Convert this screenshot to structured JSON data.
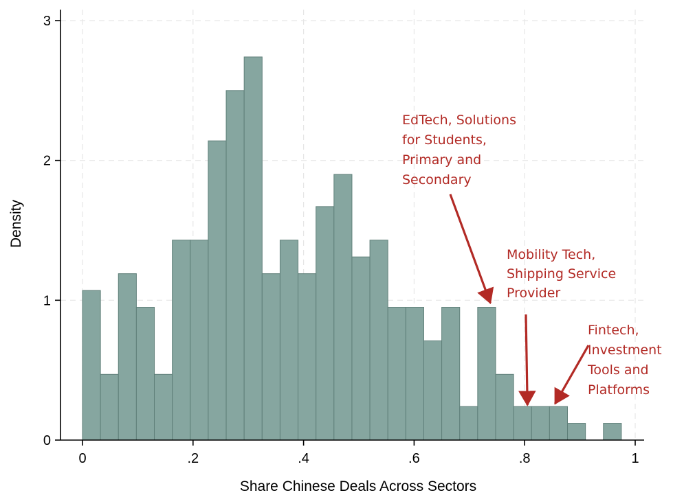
{
  "chart_data": {
    "type": "bar",
    "histogram": true,
    "bin_width": 0.0325,
    "bin_start": 0,
    "values": [
      1.07,
      0.47,
      1.19,
      0.95,
      0.47,
      1.43,
      1.43,
      2.14,
      2.5,
      2.74,
      1.19,
      1.43,
      1.19,
      1.67,
      1.9,
      1.31,
      1.43,
      0.95,
      0.95,
      0.71,
      0.95,
      0.24,
      0.95,
      0.47,
      0.24,
      0.24,
      0.24,
      0.12,
      0,
      0.12
    ],
    "xlabel": "Share Chinese Deals Across Sectors",
    "ylabel": "Density",
    "xlim": [
      0,
      1
    ],
    "ylim": [
      0,
      3
    ],
    "xticks": [
      {
        "value": 0,
        "label": "0"
      },
      {
        "value": 0.2,
        "label": ".2"
      },
      {
        "value": 0.4,
        "label": ".4"
      },
      {
        "value": 0.6,
        "label": ".6"
      },
      {
        "value": 0.8,
        "label": ".8"
      },
      {
        "value": 1,
        "label": "1"
      }
    ],
    "yticks": [
      {
        "value": 0,
        "label": "0"
      },
      {
        "value": 1,
        "label": "1"
      },
      {
        "value": 2,
        "label": "2"
      },
      {
        "value": 3,
        "label": "3"
      }
    ],
    "grid": true,
    "bar_color": "#86a6a0",
    "bar_edge_color": "#5f7f79",
    "annotation_color": "#b22a25",
    "annotations": [
      {
        "lines": [
          "EdTech, Solutions",
          "for Students,",
          "Primary and",
          "Secondary"
        ],
        "arrow_to": {
          "x": 0.738,
          "y": 0.97
        }
      },
      {
        "lines": [
          "Mobility Tech,",
          "Shipping Service",
          "Provider"
        ],
        "arrow_to": {
          "x": 0.805,
          "y": 0.24
        }
      },
      {
        "lines": [
          "Fintech,",
          "Investment",
          "Tools and",
          "Platforms"
        ],
        "arrow_to": {
          "x": 0.855,
          "y": 0.25
        }
      }
    ]
  }
}
